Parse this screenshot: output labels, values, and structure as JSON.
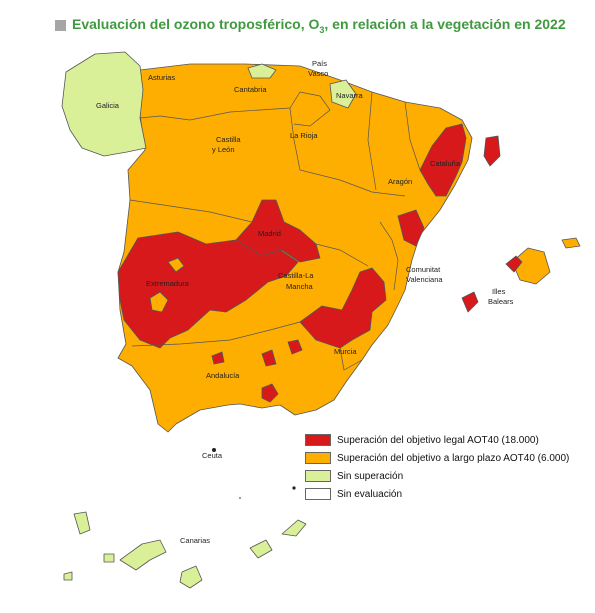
{
  "title": {
    "pre": "Evaluación del ozono troposférico, O",
    "sub": "3",
    "post": ", en relación a la vegetación en 2022"
  },
  "colors": {
    "legal": "#d7191c",
    "long_term": "#fdae00",
    "none": "#d9f099",
    "not_evaluated": "#ffffff",
    "border": "#555555",
    "title": "#3f9a3f"
  },
  "regions": {
    "asturias": "Asturias",
    "cantabria": "Cantabria",
    "pais_vasco_1": "País",
    "pais_vasco_2": "Vasco",
    "navarra": "Navarra",
    "galicia": "Galicia",
    "la_rioja": "La Rioja",
    "castilla_leon_1": "Castilla",
    "castilla_leon_2": "y León",
    "cataluna": "Cataluña",
    "aragon": "Aragón",
    "madrid": "Madrid",
    "extremadura": "Extremadura",
    "castilla_mancha_1": "Castilla-La",
    "castilla_mancha_2": "Mancha",
    "valenciana_1": "Comunitat",
    "valenciana_2": "Valenciana",
    "baleares_1": "Illes",
    "baleares_2": "Balears",
    "murcia": "Murcia",
    "andalucia": "Andalucía",
    "ceuta": "Ceuta",
    "canarias": "Canarias"
  },
  "legend": [
    {
      "label": "Superación del objetivo legal AOT40 (18.000)",
      "color": "#d7191c"
    },
    {
      "label": "Superación del objetivo a largo plazo AOT40 (6.000)",
      "color": "#fdae00"
    },
    {
      "label": "Sin superación",
      "color": "#d9f099"
    },
    {
      "label": "Sin evaluación",
      "color": "#ffffff"
    }
  ]
}
